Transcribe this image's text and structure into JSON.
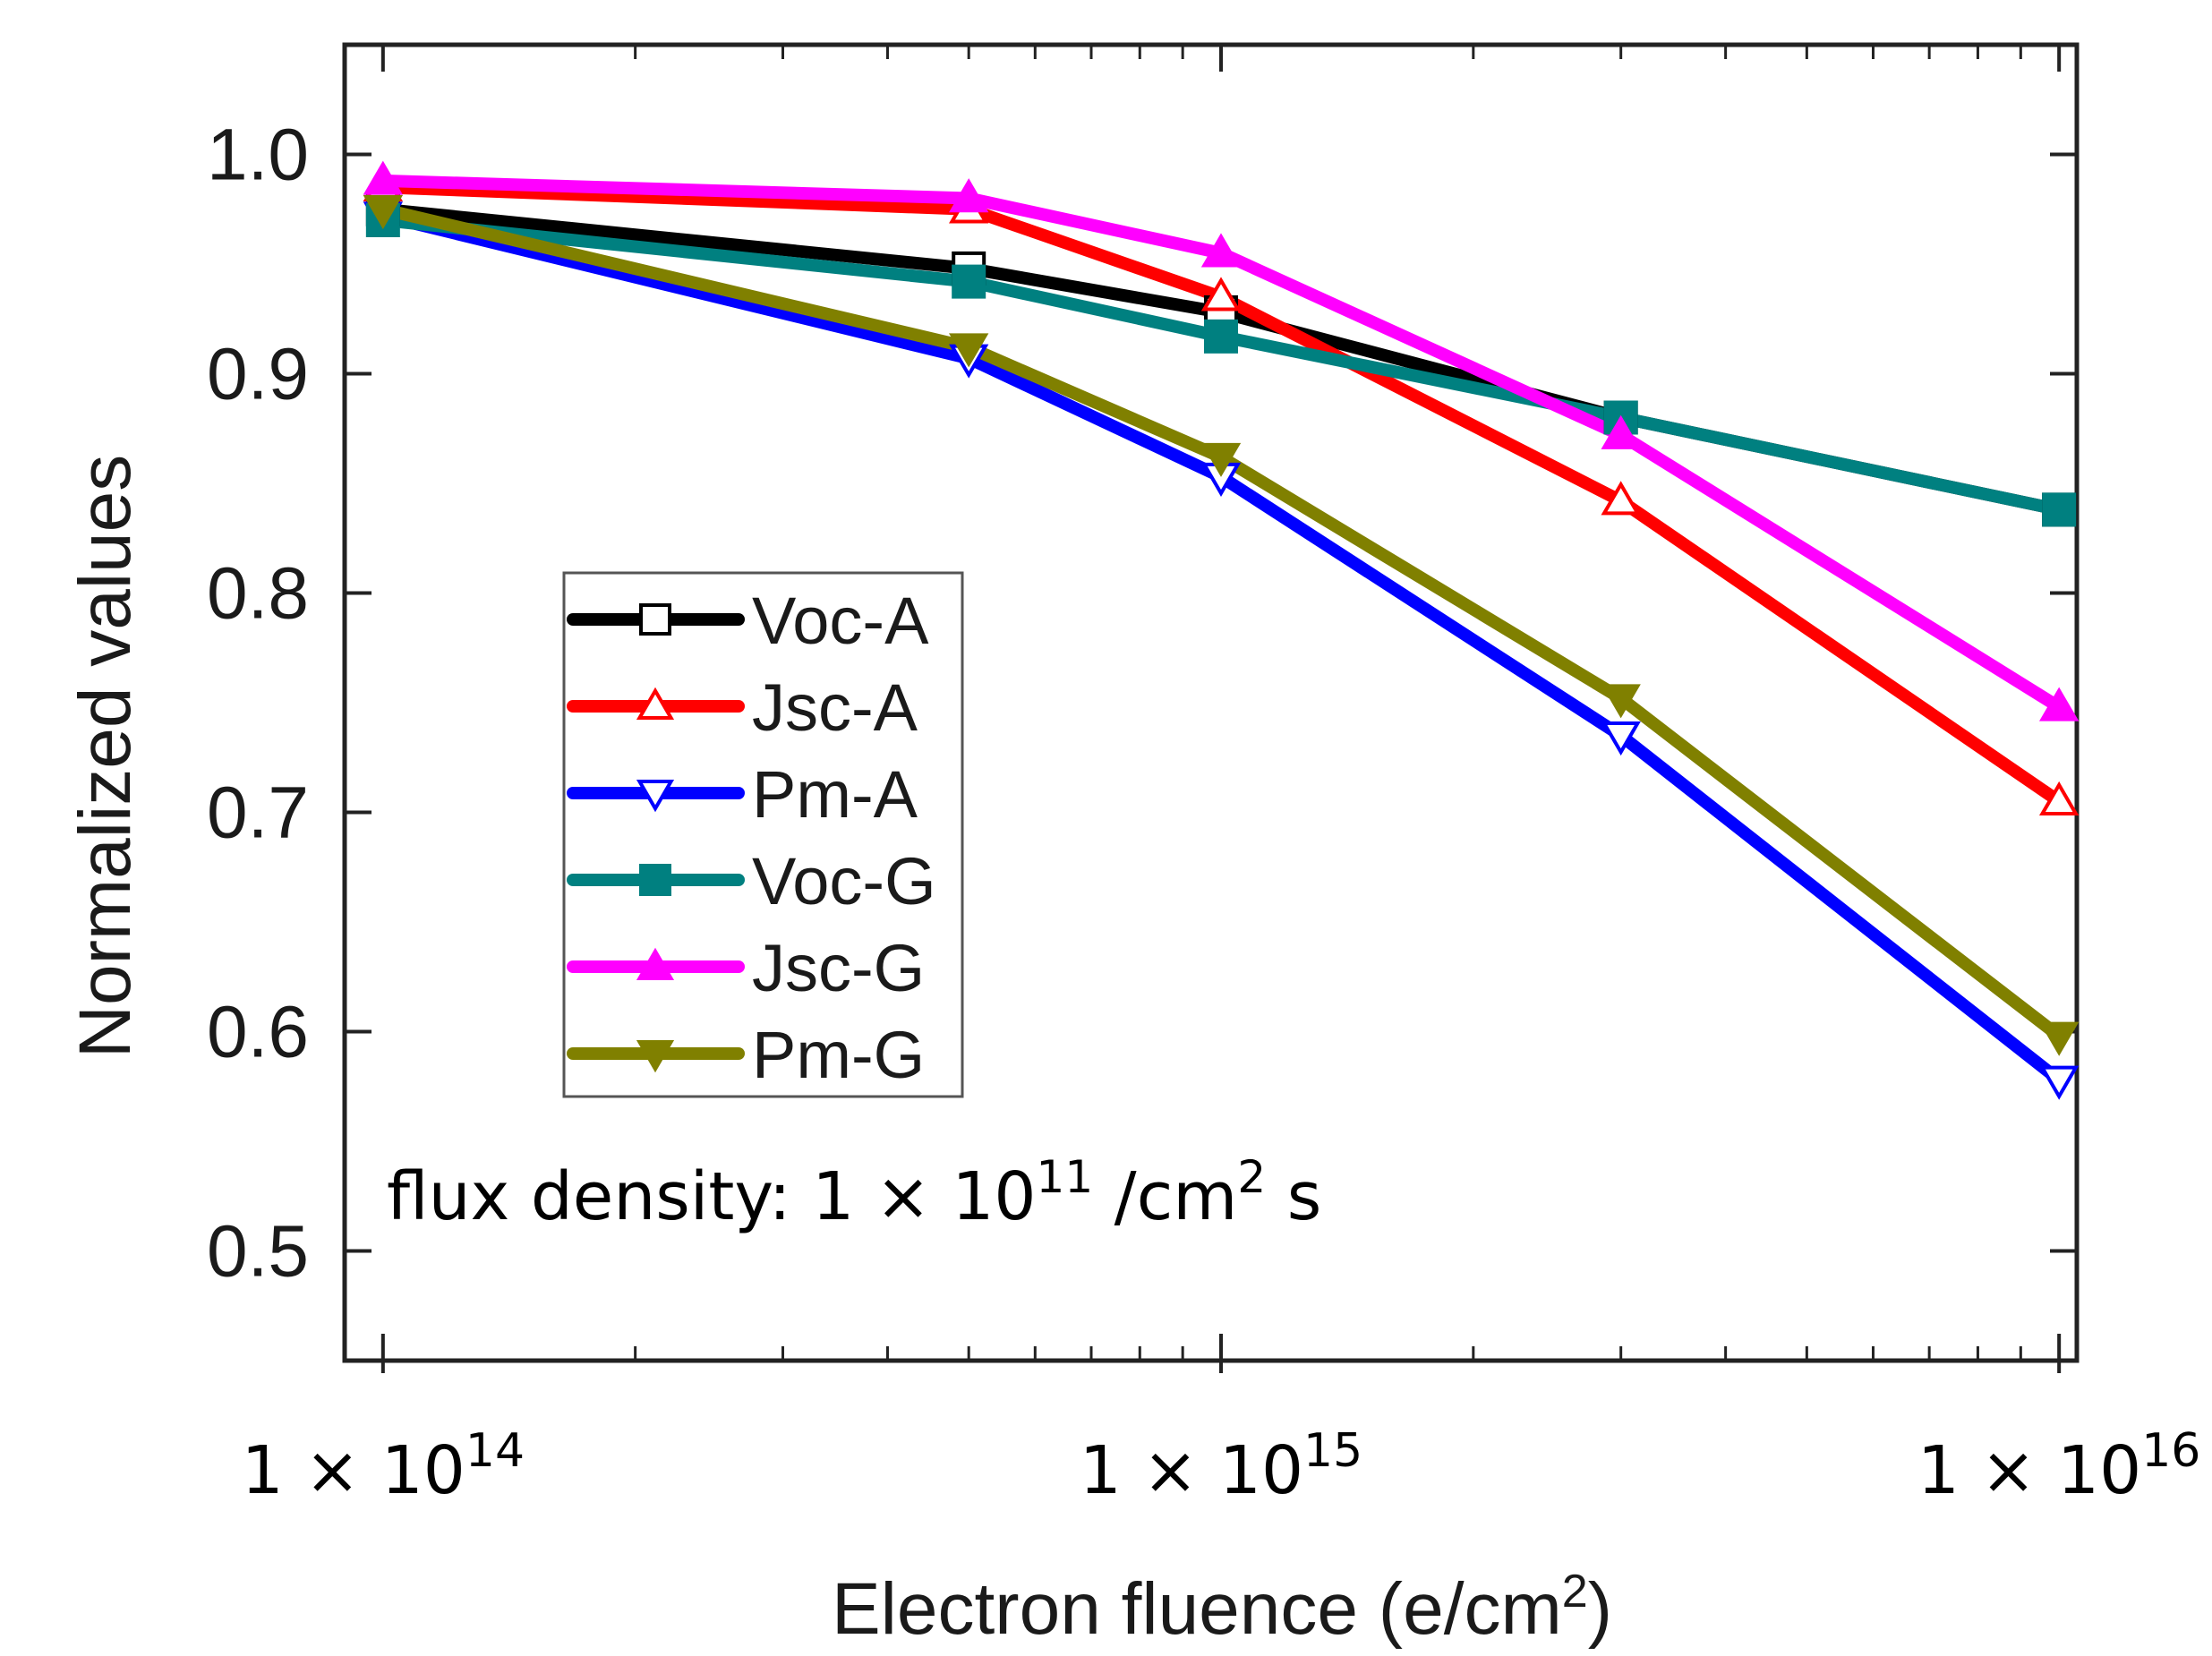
{
  "chart_data": {
    "type": "line",
    "title": "",
    "xlabel": "Electron fluence (e/cm",
    "xlabel_sup": "2",
    "xlabel_end": ")",
    "ylabel": "Normalized values",
    "xscale": "log",
    "xlim": [
      90000000000000,
      10500000000000000
    ],
    "ylim": [
      0.45,
      1.05
    ],
    "x": [
      100000000000000,
      500000000000000,
      1000000000000000,
      3000000000000000,
      10000000000000000
    ],
    "y_ticks": [
      {
        "value": 1.0,
        "label": "1.0"
      },
      {
        "value": 0.9,
        "label": "0.9"
      },
      {
        "value": 0.8,
        "label": "0.8"
      },
      {
        "value": 0.7,
        "label": "0.7"
      },
      {
        "value": 0.6,
        "label": "0.6"
      },
      {
        "value": 0.5,
        "label": "0.5"
      }
    ],
    "x_ticks": [
      {
        "value": 100000000000000,
        "base": "1 × 10",
        "exp": "14"
      },
      {
        "value": 1000000000000000,
        "base": "1 × 10",
        "exp": "15"
      },
      {
        "value": 10000000000000000,
        "base": "1 × 10",
        "exp": "16"
      }
    ],
    "series": [
      {
        "name": "Voc-A",
        "color": "#000000",
        "marker": "square",
        "filled": false,
        "values": [
          0.975,
          0.948,
          0.928,
          0.88,
          0.838
        ]
      },
      {
        "name": "Jsc-A",
        "color": "#ff0000",
        "marker": "triangle-up",
        "filled": false,
        "values": [
          0.985,
          0.975,
          0.935,
          0.842,
          0.705
        ]
      },
      {
        "name": "Pm-A",
        "color": "#0000ff",
        "marker": "triangle-down",
        "filled": false,
        "values": [
          0.972,
          0.907,
          0.853,
          0.735,
          0.578
        ]
      },
      {
        "name": "Voc-G",
        "color": "#008080",
        "marker": "square",
        "filled": true,
        "values": [
          0.97,
          0.942,
          0.917,
          0.88,
          0.838
        ]
      },
      {
        "name": "Jsc-G",
        "color": "#ff00ff",
        "marker": "triangle-up",
        "filled": true,
        "values": [
          0.988,
          0.98,
          0.955,
          0.872,
          0.748
        ]
      },
      {
        "name": "Pm-G",
        "color": "#808000",
        "marker": "triangle-down",
        "filled": true,
        "values": [
          0.975,
          0.912,
          0.862,
          0.752,
          0.598
        ]
      }
    ],
    "legend_position": "center-left",
    "annotation": {
      "prefix": "flux density: 1 × 10",
      "exp1": "11",
      "mid": " /cm",
      "exp2": "2",
      "suffix": " s"
    }
  }
}
